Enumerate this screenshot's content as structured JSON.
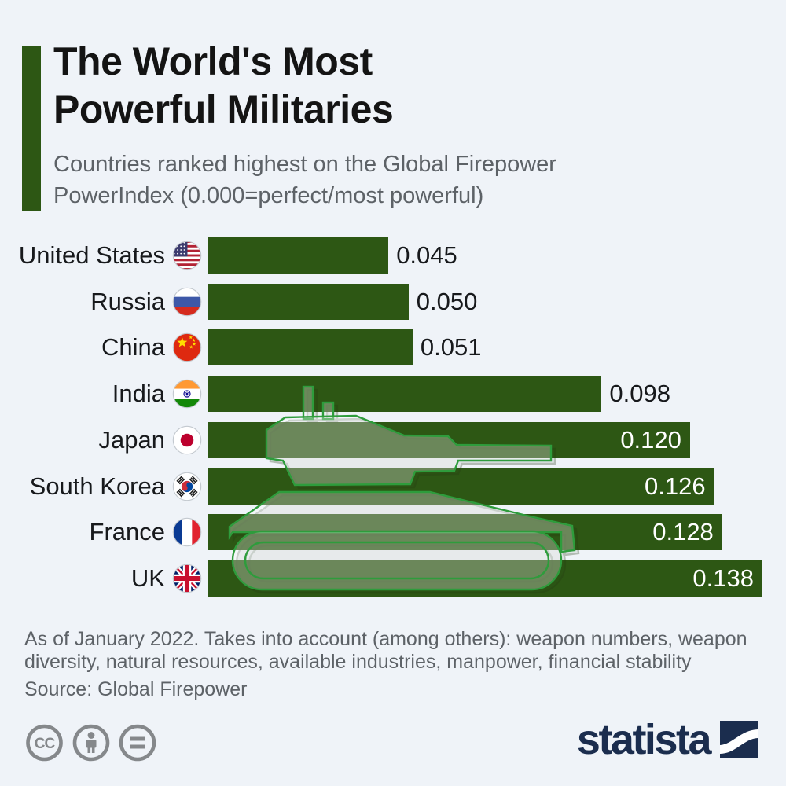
{
  "header": {
    "title_line1": "The World's Most",
    "title_line2": "Powerful Militaries",
    "subtitle_line1": "Countries ranked highest on the Global Firepower",
    "subtitle_line2": "PowerIndex (0.000=perfect/most powerful)"
  },
  "chart_data": {
    "type": "bar",
    "orientation": "horizontal",
    "title": "The World's Most Powerful Militaries",
    "subtitle": "Countries ranked highest on the Global Firepower PowerIndex (0.000=perfect/most powerful)",
    "categories": [
      "United States",
      "Russia",
      "China",
      "India",
      "Japan",
      "South Korea",
      "France",
      "UK"
    ],
    "values": [
      0.045,
      0.05,
      0.051,
      0.098,
      0.12,
      0.126,
      0.128,
      0.138
    ],
    "value_labels": [
      "0.045",
      "0.050",
      "0.051",
      "0.098",
      "0.120",
      "0.126",
      "0.128",
      "0.138"
    ],
    "label_inside": [
      false,
      false,
      false,
      false,
      true,
      true,
      true,
      true
    ],
    "flag_icons": [
      "flag-united-states-icon",
      "flag-russia-icon",
      "flag-china-icon",
      "flag-india-icon",
      "flag-japan-icon",
      "flag-south-korea-icon",
      "flag-france-icon",
      "flag-uk-icon"
    ],
    "xlim": [
      0,
      0.138
    ],
    "bar_color": "#2d5714",
    "gridlines": false,
    "legend": "none",
    "annotations": [
      "translucent tank silhouette watermark drawn across the bars"
    ]
  },
  "footer": {
    "note_line1": "As of January 2022. Takes into account (among others): weapon numbers, weapon",
    "note_line2": "diversity, natural resources, available industries, manpower, financial stability",
    "source": "Source: Global Firepower"
  },
  "license": {
    "cc_label": "CC",
    "icons": [
      "cc-icon",
      "attribution-person-icon",
      "equals-icon"
    ]
  },
  "branding": {
    "wordmark": "statista",
    "color": "#1b2d4e"
  },
  "colors": {
    "background": "#eff3f8",
    "bar_green": "#2d5714",
    "tank_outline_green": "#2e9c3c",
    "text_dark": "#17191c",
    "text_gray": "#5d6267",
    "statista_navy": "#1b2d4e",
    "license_gray": "#85888b"
  }
}
